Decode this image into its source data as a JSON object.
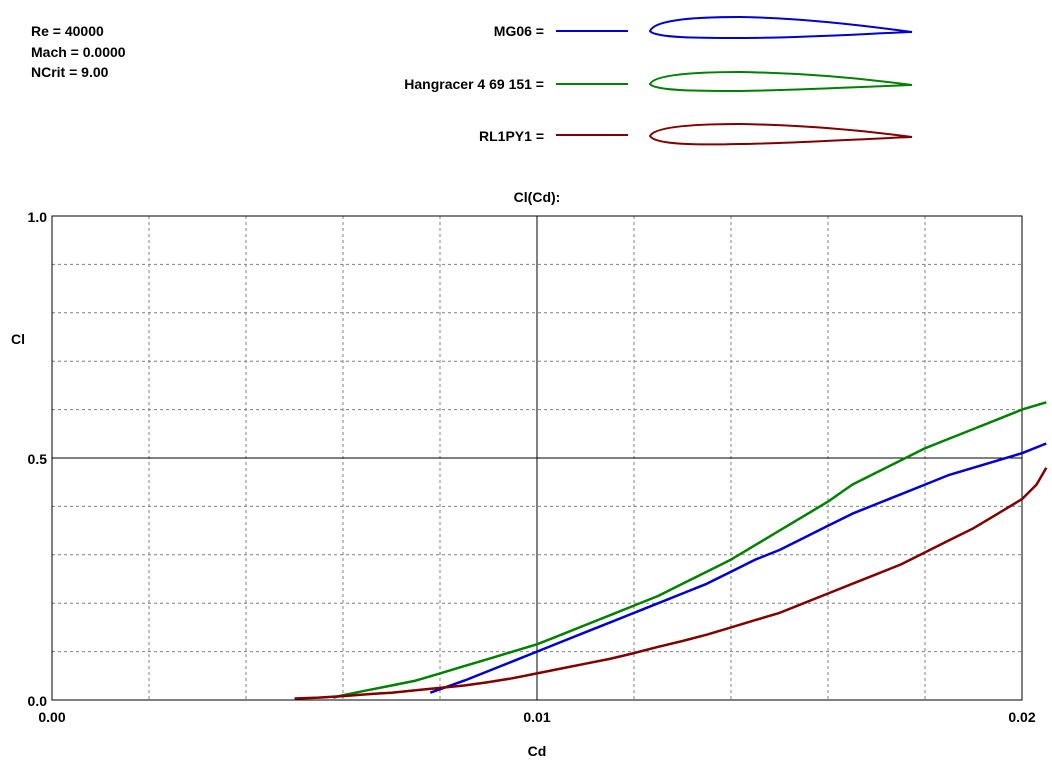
{
  "info": {
    "reynolds": "Re = 40000",
    "mach": "Mach = 0.0000",
    "ncrit": "NCrit = 9.00"
  },
  "legend": [
    {
      "label": "MG06 =",
      "color": "#0000cc"
    },
    {
      "label": "Hangracer 4 69 151 =",
      "color": "#008000"
    },
    {
      "label": "RL1PY1 =",
      "color": "#800000"
    }
  ],
  "chart_data": {
    "type": "line",
    "title": "Cl(Cd):",
    "xlabel": "Cd",
    "ylabel": "Cl",
    "xlim": [
      0.0,
      0.02
    ],
    "ylim": [
      0.0,
      1.0
    ],
    "xticks": [
      "0.00",
      "0.01",
      "0.02"
    ],
    "yticks": [
      "0.0",
      "0.5",
      "1.0"
    ],
    "grid": true,
    "series": [
      {
        "name": "MG06",
        "color": "#0000cc",
        "x": [
          0.0078,
          0.0085,
          0.009,
          0.0095,
          0.01,
          0.0105,
          0.011,
          0.0115,
          0.012,
          0.0125,
          0.013,
          0.0135,
          0.014,
          0.0145,
          0.015,
          0.0155,
          0.016,
          0.0165,
          0.017,
          0.0175,
          0.018,
          0.0185,
          0.019,
          0.0195,
          0.02,
          0.0205
        ],
        "y": [
          0.015,
          0.04,
          0.06,
          0.08,
          0.1,
          0.12,
          0.14,
          0.16,
          0.18,
          0.2,
          0.22,
          0.24,
          0.265,
          0.29,
          0.31,
          0.335,
          0.36,
          0.385,
          0.405,
          0.425,
          0.445,
          0.465,
          0.48,
          0.495,
          0.51,
          0.53
        ]
      },
      {
        "name": "Hangracer 4 69 151",
        "color": "#008000",
        "x": [
          0.0058,
          0.006,
          0.0065,
          0.007,
          0.0075,
          0.008,
          0.0085,
          0.009,
          0.0095,
          0.01,
          0.0105,
          0.011,
          0.0115,
          0.012,
          0.0125,
          0.013,
          0.0135,
          0.014,
          0.0145,
          0.015,
          0.0155,
          0.016,
          0.0165,
          0.017,
          0.0175,
          0.018,
          0.0185,
          0.019,
          0.0195,
          0.02,
          0.0205
        ],
        "y": [
          0.005,
          0.01,
          0.02,
          0.03,
          0.04,
          0.055,
          0.07,
          0.085,
          0.1,
          0.115,
          0.135,
          0.155,
          0.175,
          0.195,
          0.215,
          0.24,
          0.265,
          0.29,
          0.32,
          0.35,
          0.38,
          0.41,
          0.445,
          0.47,
          0.495,
          0.52,
          0.54,
          0.56,
          0.58,
          0.6,
          0.615
        ]
      },
      {
        "name": "RL1PY1",
        "color": "#800000",
        "x": [
          0.005,
          0.0055,
          0.006,
          0.0065,
          0.007,
          0.0075,
          0.008,
          0.0085,
          0.009,
          0.0095,
          0.01,
          0.0105,
          0.011,
          0.0115,
          0.012,
          0.0125,
          0.013,
          0.0135,
          0.014,
          0.0145,
          0.015,
          0.0155,
          0.016,
          0.0165,
          0.017,
          0.0175,
          0.018,
          0.0185,
          0.019,
          0.0195,
          0.02,
          0.0203,
          0.0205
        ],
        "y": [
          0.003,
          0.005,
          0.008,
          0.012,
          0.015,
          0.02,
          0.025,
          0.03,
          0.037,
          0.045,
          0.055,
          0.065,
          0.075,
          0.085,
          0.097,
          0.11,
          0.122,
          0.135,
          0.15,
          0.165,
          0.18,
          0.2,
          0.22,
          0.24,
          0.26,
          0.28,
          0.305,
          0.33,
          0.355,
          0.385,
          0.415,
          0.445,
          0.48
        ]
      }
    ]
  }
}
